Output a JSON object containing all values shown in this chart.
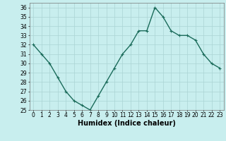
{
  "x": [
    0,
    1,
    2,
    3,
    4,
    5,
    6,
    7,
    8,
    9,
    10,
    11,
    12,
    13,
    14,
    15,
    16,
    17,
    18,
    19,
    20,
    21,
    22,
    23
  ],
  "y": [
    32,
    31,
    30,
    28.5,
    27,
    26,
    25.5,
    25,
    26.5,
    28,
    29.5,
    31,
    32,
    33.5,
    33.5,
    36,
    35,
    33.5,
    33,
    33,
    32.5,
    31,
    30,
    29.5
  ],
  "line_color": "#1a6b5a",
  "marker": "+",
  "marker_size": 3,
  "bg_color": "#c8eeee",
  "grid_color": "#aad4d4",
  "xlabel": "Humidex (Indice chaleur)",
  "ylim": [
    25,
    36.5
  ],
  "xlim": [
    -0.5,
    23.5
  ],
  "yticks": [
    25,
    26,
    27,
    28,
    29,
    30,
    31,
    32,
    33,
    34,
    35,
    36
  ],
  "xtick_labels": [
    "0",
    "1",
    "2",
    "3",
    "4",
    "5",
    "6",
    "7",
    "8",
    "9",
    "10",
    "11",
    "12",
    "13",
    "14",
    "15",
    "16",
    "17",
    "18",
    "19",
    "20",
    "21",
    "22",
    "23"
  ],
  "tick_fontsize": 5.5,
  "xlabel_fontsize": 7,
  "line_width": 1.0
}
